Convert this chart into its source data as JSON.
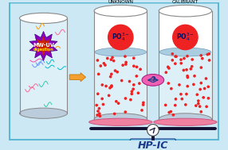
{
  "bg_color": "#cce8f4",
  "border_color": "#5bb8d4",
  "cylinder1_label": "MW-UV",
  "cylinder2_label": "UNKNOWN",
  "cylinder3_label": "CALIBRANT",
  "hpic_label": "HP-IC",
  "arrow_color": "#f4a030",
  "arrow_border": "#cc7700",
  "pink_disc_color": "#f080a0",
  "hpic_box_color": "#1a3a8a",
  "hpic_bg_color": "#7ec8e8",
  "dots_color": "#ee2222",
  "dna_colors": [
    "#ff6699",
    "#00bbcc",
    "#6699ff",
    "#ff9900",
    "#ff44aa",
    "#33ccaa"
  ],
  "question_circle_color": "#f060b0",
  "question_text_color": "#1a3a8a",
  "star_outer_color": "#8800bb",
  "star_inner_color": "#cc2200",
  "mwuv_text_color": "#ffffff",
  "mwuv_sub_color": "#ffdd00"
}
